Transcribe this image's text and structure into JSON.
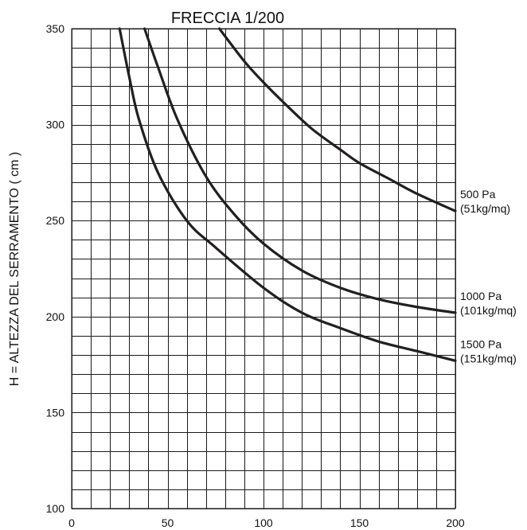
{
  "chart_data": {
    "type": "line",
    "title": "FRECCIA 1/200",
    "xlabel": "",
    "ylabel": "H = ALTEZZA DEL SERRAMENTO ( cm )",
    "xlim": [
      0,
      200
    ],
    "ylim": [
      100,
      350
    ],
    "x_ticks": [
      0,
      50,
      100,
      150,
      200
    ],
    "y_ticks": [
      100,
      150,
      200,
      250,
      300,
      350
    ],
    "grid": true,
    "grid_x_step": 10,
    "grid_y_step": 10,
    "line_color": "#231f20",
    "series": [
      {
        "name": "500 Pa",
        "label_lines": [
          "500 Pa",
          "(51kg/mq)"
        ],
        "points": [
          [
            77,
            350
          ],
          [
            90,
            333
          ],
          [
            100,
            322
          ],
          [
            110,
            312
          ],
          [
            125,
            298
          ],
          [
            140,
            287
          ],
          [
            150,
            280
          ],
          [
            165,
            272
          ],
          [
            180,
            264
          ],
          [
            200,
            255
          ]
        ]
      },
      {
        "name": "1000 Pa",
        "label_lines": [
          "1000 Pa",
          "(101kg/mq)"
        ],
        "points": [
          [
            38,
            350
          ],
          [
            45,
            330
          ],
          [
            55,
            303
          ],
          [
            70,
            273
          ],
          [
            85,
            253
          ],
          [
            100,
            238
          ],
          [
            120,
            224
          ],
          [
            140,
            215
          ],
          [
            160,
            209
          ],
          [
            180,
            205
          ],
          [
            200,
            202
          ]
        ]
      },
      {
        "name": "1500 Pa",
        "label_lines": [
          "1500 Pa",
          "(151kg/mq)"
        ],
        "points": [
          [
            25,
            350
          ],
          [
            30,
            325
          ],
          [
            35,
            303
          ],
          [
            45,
            275
          ],
          [
            60,
            250
          ],
          [
            75,
            236
          ],
          [
            100,
            215
          ],
          [
            120,
            202
          ],
          [
            140,
            194
          ],
          [
            160,
            187
          ],
          [
            180,
            182
          ],
          [
            200,
            177
          ]
        ]
      }
    ]
  }
}
